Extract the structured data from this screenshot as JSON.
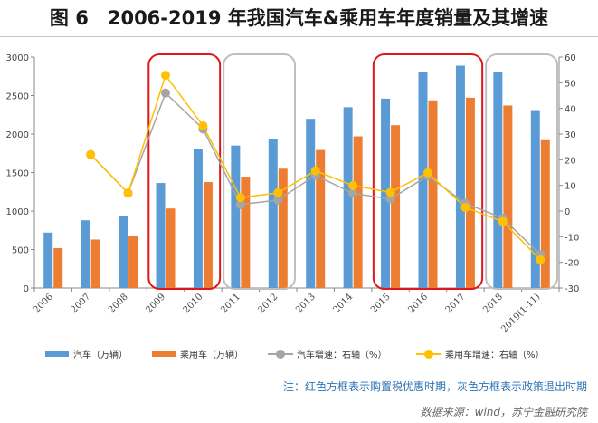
{
  "title": "图 6　2006-2019 年我国汽车&乘用车年度销量及其增速",
  "note": "注：红色方框表示购置税优惠时期，灰色方框表示政策退出时期",
  "source": "数据来源：wind，苏宁金融研究院",
  "colors": {
    "auto_bar": "#5b9bd5",
    "passenger_bar": "#ed7d31",
    "auto_line": "#a5a5a5",
    "passenger_line": "#ffc000",
    "red_box": "#e0181c",
    "gray_box": "#bfbfbf"
  },
  "chart_data": {
    "type": "bar",
    "categories": [
      "2006",
      "2007",
      "2008",
      "2009",
      "2010",
      "2011",
      "2012",
      "2013",
      "2014",
      "2015",
      "2016",
      "2017",
      "2018",
      "2019(1-11)"
    ],
    "y_left": {
      "min": 0,
      "max": 3000,
      "ticks": [
        0,
        500,
        1000,
        1500,
        2000,
        2500,
        3000
      ]
    },
    "y_right": {
      "min": -30,
      "max": 60,
      "ticks": [
        -30,
        -20,
        -10,
        0,
        10,
        20,
        30,
        40,
        50,
        60
      ]
    },
    "series": [
      {
        "name": "汽车（万辆）",
        "type": "bar",
        "axis": "left",
        "values": [
          720,
          880,
          940,
          1364,
          1806,
          1851,
          1930,
          2198,
          2349,
          2460,
          2803,
          2888,
          2808,
          2311
        ]
      },
      {
        "name": "乘用车（万辆）",
        "type": "bar",
        "axis": "left",
        "values": [
          518,
          630,
          676,
          1033,
          1376,
          1447,
          1550,
          1793,
          1970,
          2115,
          2438,
          2472,
          2371,
          1920
        ]
      },
      {
        "name": "汽车增速：右轴（%）",
        "type": "line",
        "axis": "right",
        "values": [
          null,
          22,
          7,
          46,
          32,
          2.5,
          4.3,
          13.9,
          6.9,
          4.7,
          13.7,
          3,
          -2.8,
          -17
        ]
      },
      {
        "name": "乘用车增速：右轴（%）",
        "type": "line",
        "axis": "right",
        "values": [
          null,
          22,
          7,
          52.9,
          33.2,
          5.2,
          7.1,
          15.7,
          9.9,
          7.3,
          14.9,
          1.4,
          -4.1,
          -19
        ]
      }
    ],
    "highlight_boxes": [
      {
        "kind": "red",
        "from": "2009",
        "to": "2010"
      },
      {
        "kind": "gray",
        "from": "2011",
        "to": "2012"
      },
      {
        "kind": "red",
        "from": "2015",
        "to": "2017"
      },
      {
        "kind": "gray",
        "from": "2018",
        "to": "2019(1-11)"
      }
    ],
    "grid": false,
    "legend_position": "bottom"
  }
}
